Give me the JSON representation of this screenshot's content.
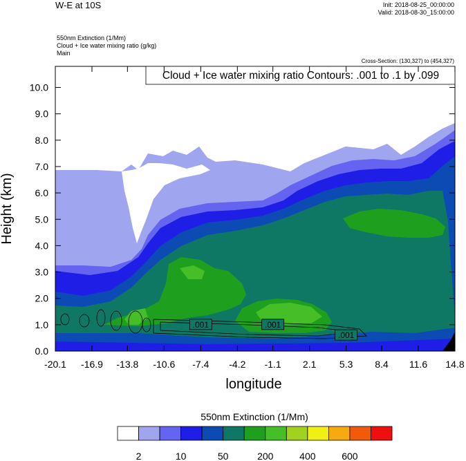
{
  "header": {
    "title": "W-E at 10S",
    "init": "Init: 2018-08-25_00:00:00",
    "valid": "Valid: 2018-08-30_15:00:00"
  },
  "fields": {
    "line1": "550nm Extinction   (1/Mm)",
    "line2": "Cloud + Ice water mixing ratio   (g/kg)",
    "line3": "Main"
  },
  "cross_section": "Cross-Section: (130,327) to (454,327)",
  "contour_label": "Cloud + Ice water mixing ratio Contours: .001 to .1 by .099",
  "colorbar": {
    "title": "550nm Extinction  (1/Mm)",
    "colors": [
      "#ffffff",
      "#a0a5f0",
      "#6464f0",
      "#1e1ee6",
      "#0c4bb4",
      "#0f7864",
      "#1ea01e",
      "#46be28",
      "#a0d21e",
      "#f0f014",
      "#f5aa0f",
      "#f05a0a",
      "#f00f0f"
    ],
    "labels": [
      "2",
      "10",
      "50",
      "200",
      "400",
      "600"
    ]
  },
  "chart_data": {
    "type": "heatmap",
    "xlabel": "longitude",
    "ylabel": "Height (km)",
    "x_ticks": [
      "-20.1",
      "-16.9",
      "-13.8",
      "-10.6",
      "-7.4",
      "-4.2",
      "-1.1",
      "2.1",
      "5.3",
      "8.4",
      "11.6",
      "14.8"
    ],
    "y_ticks": [
      "0.0",
      "1.0",
      "2.0",
      "3.0",
      "4.0",
      "5.0",
      "6.0",
      "7.0",
      "8.0",
      "9.0",
      "10.0"
    ],
    "xlim": [
      -20.1,
      14.8
    ],
    "ylim": [
      0,
      10.8
    ],
    "contour_labels": [
      ".001",
      ".001",
      ".001"
    ],
    "contour_label_x": [
      -7.4,
      -1.1,
      5.3
    ],
    "contour_label_y": [
      1.0,
      1.0,
      0.6
    ]
  }
}
